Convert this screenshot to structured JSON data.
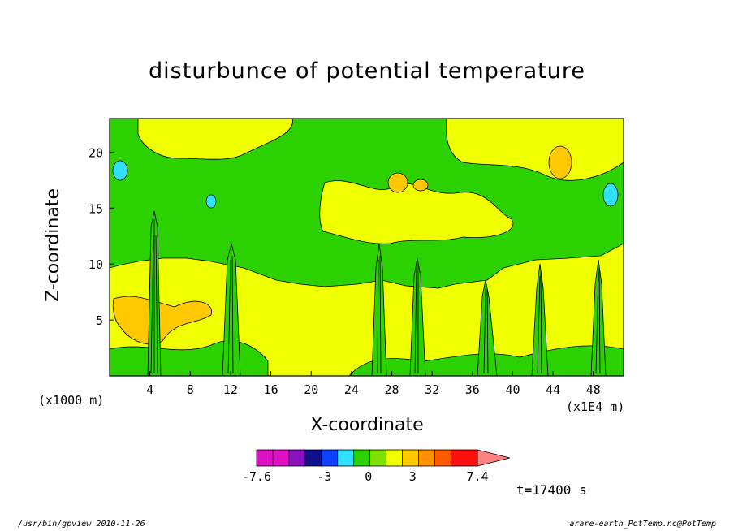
{
  "chart_data": {
    "type": "heatmap",
    "title": "disturbunce of potential temperature",
    "xlabel": "X-coordinate",
    "ylabel": "Z-coordinate",
    "x_unit_left": "(x1000 m)",
    "x_unit_right": "(x1E4 m)",
    "xlim": [
      0,
      51
    ],
    "ylim": [
      0,
      23
    ],
    "x_ticks": [
      "4",
      "8",
      "12",
      "16",
      "20",
      "24",
      "28",
      "32",
      "36",
      "40",
      "44",
      "48"
    ],
    "y_ticks": [
      "5",
      "10",
      "15",
      "20"
    ],
    "colorbar": {
      "levels": [
        -7.6,
        -6.5,
        -5.4,
        -4.3,
        -3.2,
        -2.1,
        -1,
        0.1,
        1.2,
        2.3,
        3.4,
        4.5,
        5.6,
        7.4
      ],
      "colors": [
        "#e010c8",
        "#e010c8",
        "#8a10c0",
        "#10108c",
        "#1040ff",
        "#30e0ff",
        "#2cd100",
        "#7ee000",
        "#f0ff00",
        "#ffc800",
        "#ff9000",
        "#ff5a00",
        "#ff1010",
        "#ff8080"
      ],
      "tick_labels": [
        "-7.6",
        "-3",
        "0",
        "3",
        "7.4"
      ]
    },
    "time_label": "t=17400 s"
  },
  "footer": {
    "left": "/usr/bin/gpview  2010-11-26",
    "right": "arare-earth_PotTemp.nc@PotTemp"
  }
}
